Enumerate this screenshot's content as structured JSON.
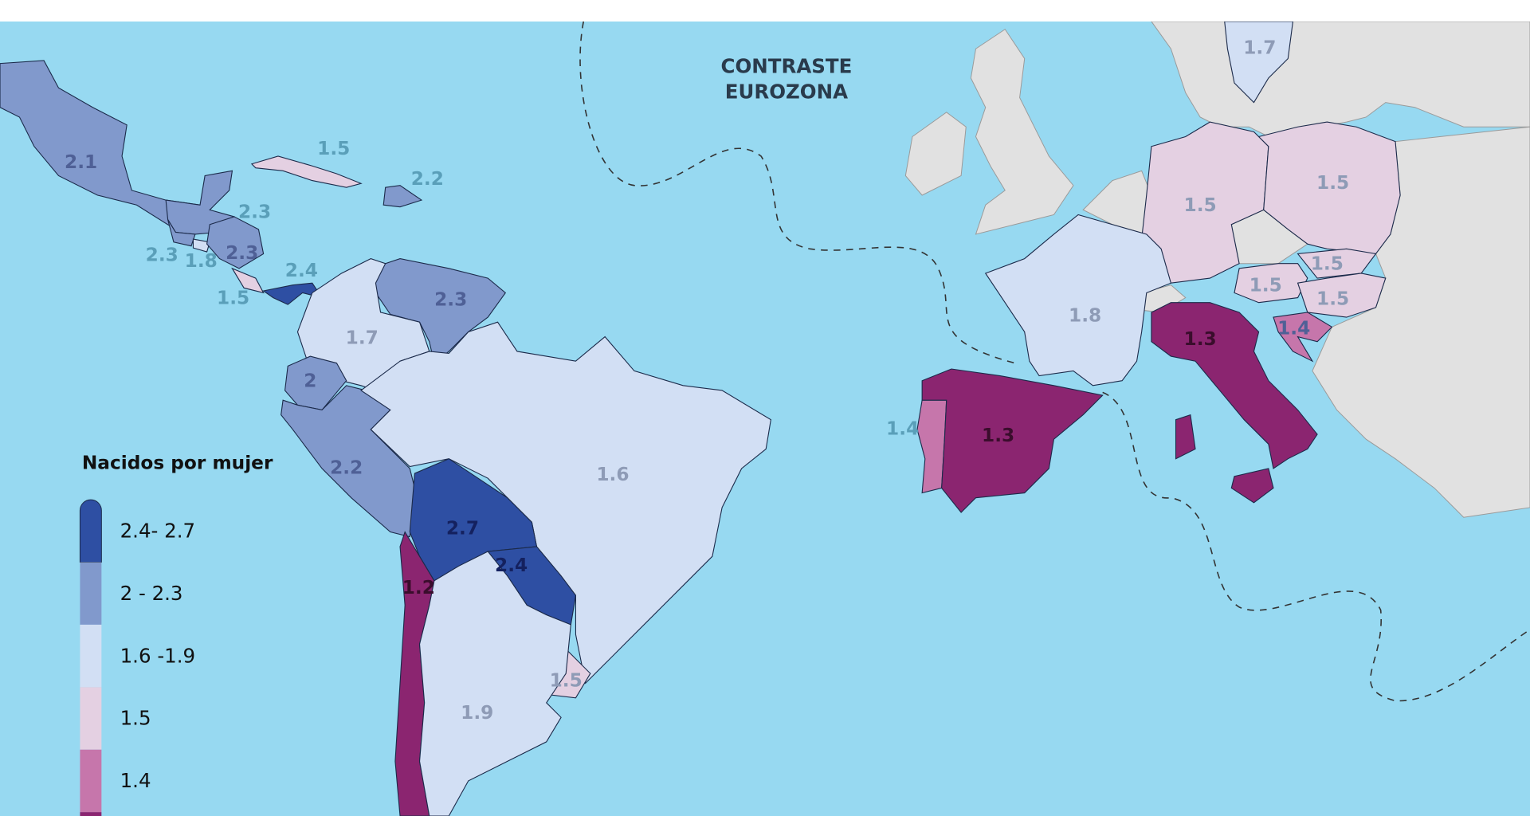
{
  "header": {
    "title_line1": "CONTRASTE",
    "title_line2": "EUROZONA"
  },
  "legend": {
    "title": "Nacidos por mujer",
    "items": [
      {
        "label": "2.4- 2.7",
        "color": "#2e4fa3"
      },
      {
        "label": "2 - 2.3",
        "color": "#8199cc"
      },
      {
        "label": "1.6 -1.9",
        "color": "#d2dff4"
      },
      {
        "label": "1.5",
        "color": "#e4d0e2"
      },
      {
        "label": "1.4",
        "color": "#c676ab"
      }
    ]
  },
  "regions": [
    {
      "value": 2.1,
      "color": "#8199cc"
    },
    {
      "value": 1.5,
      "color": "#e4d0e2"
    },
    {
      "value": 2.2,
      "color": "#8199cc"
    },
    {
      "value": 2.3,
      "color": "#8199cc"
    },
    {
      "value": 2.3,
      "color": "#8199cc"
    },
    {
      "value": 1.8,
      "color": "#d2dff4"
    },
    {
      "value": 2.3,
      "color": "#8199cc"
    },
    {
      "value": 2.4,
      "color": "#2e4fa3"
    },
    {
      "value": 1.5,
      "color": "#e4d0e2"
    },
    {
      "value": 2.3,
      "color": "#8199cc"
    },
    {
      "value": 1.7,
      "color": "#d2dff4"
    },
    {
      "value": 2,
      "color": "#8199cc"
    },
    {
      "value": 2.2,
      "color": "#8199cc"
    },
    {
      "value": 1.6,
      "color": "#d2dff4"
    },
    {
      "value": 2.7,
      "color": "#2e4fa3"
    },
    {
      "value": 2.4,
      "color": "#2e4fa3"
    },
    {
      "value": 1.2,
      "color": "#8b2570"
    },
    {
      "value": 1.5,
      "color": "#e4d0e2"
    },
    {
      "value": 1.9,
      "color": "#d2dff4"
    },
    {
      "value": 1.7,
      "color": "#d2dff4"
    },
    {
      "value": 1.5,
      "color": "#e4d0e2"
    },
    {
      "value": 1.5,
      "color": "#e4d0e2"
    },
    {
      "value": 1.5,
      "color": "#e4d0e2"
    },
    {
      "value": 1.5,
      "color": "#e4d0e2"
    },
    {
      "value": 1.5,
      "color": "#e4d0e2"
    },
    {
      "value": 1.8,
      "color": "#d2dff4"
    },
    {
      "value": 1.3,
      "color": "#8b2570"
    },
    {
      "value": 1.4,
      "color": "#c676ab"
    },
    {
      "value": 1.4,
      "color": "#c676ab"
    },
    {
      "value": 1.3,
      "color": "#8b2570"
    }
  ]
}
